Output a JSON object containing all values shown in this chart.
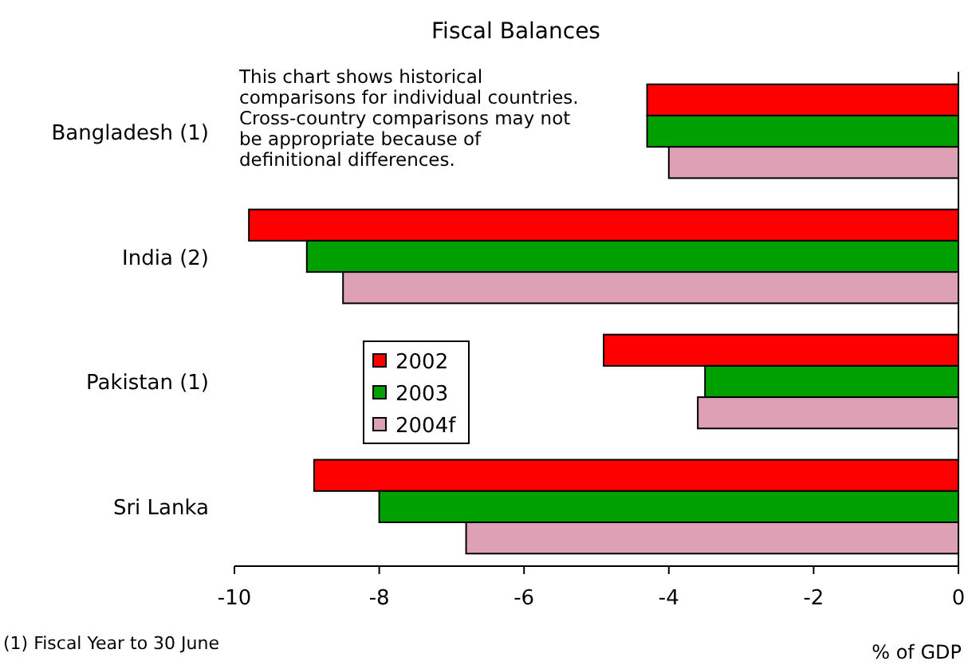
{
  "chart_data": {
    "type": "bar",
    "orientation": "horizontal",
    "title": "Fiscal Balances",
    "xlabel": "% of GDP",
    "categories": [
      "Bangladesh (1)",
      "India (2)",
      "Pakistan (1)",
      "Sri Lanka"
    ],
    "series": [
      {
        "name": "2002",
        "color": "#ff0000",
        "values": [
          -4.3,
          -9.8,
          -4.9,
          -8.9
        ]
      },
      {
        "name": "2003",
        "color": "#00a000",
        "values": [
          -4.3,
          -9.0,
          -3.5,
          -8.0
        ]
      },
      {
        "name": "2004f",
        "color": "#dda0b4",
        "values": [
          -4.0,
          -8.5,
          -3.6,
          -6.8
        ]
      }
    ],
    "xlim": [
      -10,
      0
    ],
    "xticks": [
      -10,
      -8,
      -6,
      -4,
      -2,
      0
    ],
    "grid": false,
    "legend": "left",
    "annotations": [
      "This chart shows historical\ncomparisons for individual countries.\nCross-country comparisons may not\nbe appropriate because of\ndefinitional differences.",
      "(1) Fiscal Year to 30 June"
    ]
  }
}
